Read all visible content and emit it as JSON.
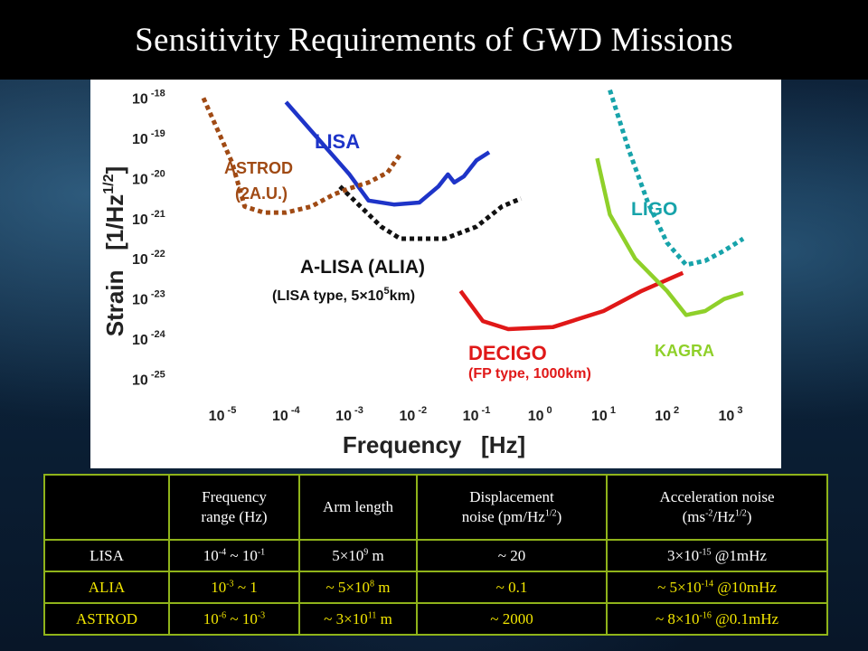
{
  "slide": {
    "title": "Sensitivity Requirements of GWD Missions"
  },
  "chart_data": {
    "type": "line",
    "title": "",
    "xlabel": "Frequency   [Hz]",
    "ylabel": "Strain   [1/Hz",
    "ylabel_exp": "1/2",
    "ylabel_close": "]",
    "xscale": "log",
    "yscale": "log",
    "xlim": [
      -5.2,
      3.2
    ],
    "ylim": [
      -25.1,
      -17.9
    ],
    "x_ticks": [
      {
        "base": "10",
        "exp": "-5",
        "v": -5
      },
      {
        "base": "10",
        "exp": "-4",
        "v": -4
      },
      {
        "base": "10",
        "exp": "-3",
        "v": -3
      },
      {
        "base": "10",
        "exp": "-2",
        "v": -2
      },
      {
        "base": "10",
        "exp": "-1",
        "v": -1
      },
      {
        "base": "10",
        "exp": "0",
        "v": 0
      },
      {
        "base": "10",
        "exp": "1",
        "v": 1
      },
      {
        "base": "10",
        "exp": "2",
        "v": 2
      },
      {
        "base": "10",
        "exp": "3",
        "v": 3
      }
    ],
    "y_ticks": [
      {
        "base": "10",
        "exp": "-18",
        "v": -18
      },
      {
        "base": "10",
        "exp": "-19",
        "v": -19
      },
      {
        "base": "10",
        "exp": "-20",
        "v": -20
      },
      {
        "base": "10",
        "exp": "-21",
        "v": -21
      },
      {
        "base": "10",
        "exp": "-22",
        "v": -22
      },
      {
        "base": "10",
        "exp": "-23",
        "v": -23
      },
      {
        "base": "10",
        "exp": "-24",
        "v": -24
      },
      {
        "base": "10",
        "exp": "-25",
        "v": -25
      }
    ],
    "series": [
      {
        "name": "LISA",
        "color": "#1e34c8",
        "style": "solid",
        "label": "LISA",
        "points": [
          [
            -4,
            -18.1
          ],
          [
            -3,
            -19.9
          ],
          [
            -2.7,
            -20.55
          ],
          [
            -2.3,
            -20.65
          ],
          [
            -1.9,
            -20.6
          ],
          [
            -1.6,
            -20.2
          ],
          [
            -1.45,
            -19.9
          ],
          [
            -1.35,
            -20.1
          ],
          [
            -1.2,
            -19.95
          ],
          [
            -1,
            -19.55
          ],
          [
            -0.8,
            -19.35
          ]
        ]
      },
      {
        "name": "A-LISA (ALIA)",
        "color": "#111111",
        "style": "dotted",
        "label": "A-LISA (ALIA)",
        "sublabel_pre": "(LISA type, 5",
        "sublabel_times": "×",
        "sublabel_mid": "10",
        "sublabel_exp": "5",
        "sublabel_post": "km)",
        "points": [
          [
            -3.15,
            -20.2
          ],
          [
            -2.5,
            -21.2
          ],
          [
            -2.2,
            -21.5
          ],
          [
            -1.5,
            -21.5
          ],
          [
            -1,
            -21.2
          ],
          [
            -0.6,
            -20.7
          ],
          [
            -0.3,
            -20.5
          ]
        ]
      },
      {
        "name": "ASTROD (2A.U.)",
        "color": "#a04a14",
        "style": "dotted",
        "label": "ASTROD",
        "label2": "(2A.U.)",
        "points": [
          [
            -5.3,
            -18.0
          ],
          [
            -4.85,
            -19.6
          ],
          [
            -4.65,
            -20.7
          ],
          [
            -4.35,
            -20.85
          ],
          [
            -4,
            -20.85
          ],
          [
            -3.6,
            -20.7
          ],
          [
            -3.25,
            -20.4
          ],
          [
            -3,
            -20.25
          ],
          [
            -2.7,
            -20.1
          ],
          [
            -2.4,
            -19.85
          ],
          [
            -2.2,
            -19.4
          ]
        ]
      },
      {
        "name": "DECIGO (FP type, 1000km)",
        "color": "#e01818",
        "style": "solid",
        "label": "DECIGO",
        "sublabel": "(FP type, 1000km)",
        "points": [
          [
            -1.25,
            -22.8
          ],
          [
            -0.9,
            -23.55
          ],
          [
            -0.5,
            -23.75
          ],
          [
            0.2,
            -23.7
          ],
          [
            1,
            -23.3
          ],
          [
            1.6,
            -22.8
          ],
          [
            2.25,
            -22.35
          ]
        ]
      },
      {
        "name": "KAGRA",
        "color": "#8fd02a",
        "style": "solid",
        "label": "KAGRA",
        "points": [
          [
            0.9,
            -19.5
          ],
          [
            1.1,
            -20.9
          ],
          [
            1.5,
            -22.0
          ],
          [
            2,
            -22.8
          ],
          [
            2.3,
            -23.4
          ],
          [
            2.6,
            -23.3
          ],
          [
            2.9,
            -23.0
          ],
          [
            3.2,
            -22.85
          ]
        ]
      },
      {
        "name": "LIGO",
        "color": "#17a3aa",
        "style": "dotted",
        "label": "LIGO",
        "points": [
          [
            1.1,
            -17.8
          ],
          [
            1.4,
            -19.3
          ],
          [
            1.7,
            -20.6
          ],
          [
            2,
            -21.6
          ],
          [
            2.3,
            -22.15
          ],
          [
            2.6,
            -22.05
          ],
          [
            2.9,
            -21.8
          ],
          [
            3.2,
            -21.5
          ]
        ]
      }
    ]
  },
  "table": {
    "headers": [
      {
        "text": ""
      },
      {
        "line1": "Frequency",
        "line2": "range (Hz)"
      },
      {
        "line1": "Arm length"
      },
      {
        "line1": "Displacement",
        "line2_pre": "noise (pm/Hz",
        "line2_sup": "1/2",
        "line2_post": ")"
      },
      {
        "line1": "Acceleration noise",
        "line2_pre": "(ms",
        "line2_sup": "-2",
        "line2_mid": "/Hz",
        "line2_sup2": "1/2",
        "line2_post": ")"
      }
    ],
    "rows": [
      {
        "mission": "LISA",
        "freq_a": "10",
        "freq_a_exp": "-4",
        "freq_sep": " ~ ",
        "freq_b": "10",
        "freq_b_exp": "-1",
        "arm_pre": "5×10",
        "arm_exp": "9",
        "arm_post": " m",
        "disp": "~ 20",
        "acc_pre": "3×10",
        "acc_exp": "-15",
        "acc_post": " @1mHz"
      },
      {
        "mission": "ALIA",
        "freq_a": "10",
        "freq_a_exp": "-3",
        "freq_sep": " ~ 1",
        "freq_b": "",
        "freq_b_exp": "",
        "arm_pre": "~ 5×10",
        "arm_exp": "8",
        "arm_post": " m",
        "disp": "~ 0.1",
        "acc_pre": "~ 5×10",
        "acc_exp": "-14",
        "acc_post": " @10mHz"
      },
      {
        "mission": "ASTROD",
        "freq_a": "10",
        "freq_a_exp": "-6",
        "freq_sep": " ~ ",
        "freq_b": "10",
        "freq_b_exp": "-3",
        "arm_pre": "~ 3×10",
        "arm_exp": "11",
        "arm_post": " m",
        "disp": "~ 2000",
        "acc_pre": "~ 8×10",
        "acc_exp": "-16",
        "acc_post": " @0.1mHz"
      }
    ]
  }
}
